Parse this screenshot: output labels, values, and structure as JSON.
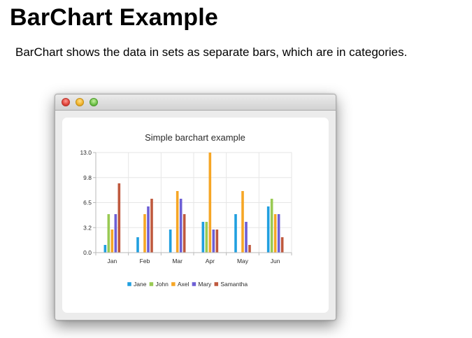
{
  "page": {
    "title": "BarChart Example",
    "description": "BarChart shows the data in sets as separate bars, which are in categories."
  },
  "window": {
    "buttons": [
      "close-icon",
      "minimize-icon",
      "maximize-icon"
    ]
  },
  "chart_data": {
    "type": "bar",
    "title": "Simple barchart example",
    "xlabel": "",
    "ylabel": "",
    "categories": [
      "Jan",
      "Feb",
      "Mar",
      "Apr",
      "May",
      "Jun"
    ],
    "series": [
      {
        "name": "Jane",
        "color": "#209fdf",
        "values": [
          1,
          2,
          3,
          4,
          5,
          6
        ]
      },
      {
        "name": "John",
        "color": "#99ca53",
        "values": [
          5,
          0,
          0,
          4,
          0,
          7
        ]
      },
      {
        "name": "Axel",
        "color": "#f6a625",
        "values": [
          3,
          5,
          8,
          13,
          8,
          5
        ]
      },
      {
        "name": "Mary",
        "color": "#6d5fd5",
        "values": [
          5,
          6,
          7,
          3,
          4,
          5
        ]
      },
      {
        "name": "Samantha",
        "color": "#bf593e",
        "values": [
          9,
          7,
          5,
          3,
          1,
          2
        ]
      }
    ],
    "ylim": [
      0,
      13
    ],
    "yticks": [
      "0.0",
      "3.2",
      "6.5",
      "9.8",
      "13.0"
    ],
    "grid": true,
    "legend": "bottom"
  }
}
